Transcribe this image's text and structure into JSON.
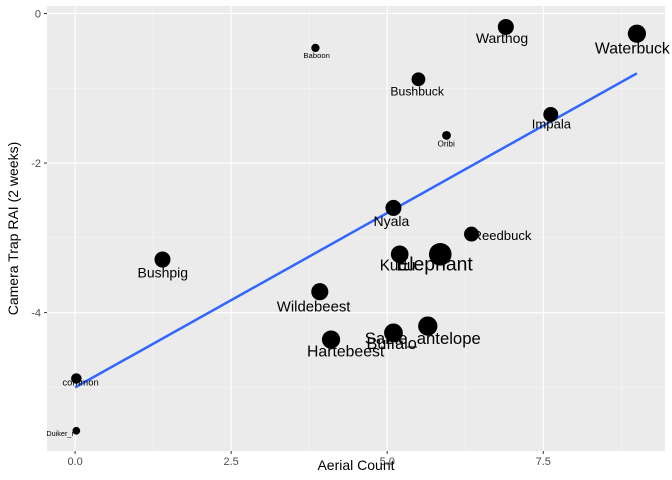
{
  "chart_data": {
    "type": "scatter",
    "xlabel": "Aerial Count",
    "ylabel": "Camera Trap RAI (2 weeks)",
    "xlim": [
      -0.45,
      9.45
    ],
    "ylim": [
      -5.85,
      0.1
    ],
    "x_ticks": [
      0,
      2.5,
      5,
      7.5
    ],
    "x_tick_labels": [
      "0.0",
      "2.5",
      "5.0",
      "7.5"
    ],
    "y_ticks": [
      0,
      -2,
      -4
    ],
    "y_tick_labels": [
      "0",
      "-2",
      "-4"
    ],
    "grid": true,
    "background": "#ebebeb",
    "point_color": "#000000",
    "fit_line": {
      "color": "#3366ff",
      "x": [
        0,
        9
      ],
      "y": [
        -5.0,
        -0.8
      ]
    },
    "points": [
      {
        "label": "Warthog",
        "x": 6.9,
        "y": -0.18,
        "size": 1.0
      },
      {
        "label": "Waterbuck",
        "x": 9.0,
        "y": -0.27,
        "size": 1.2
      },
      {
        "label": "Baboon",
        "x": 3.85,
        "y": -0.46,
        "size": 0.3
      },
      {
        "label": "Bushbuck",
        "x": 5.5,
        "y": -0.88,
        "size": 0.8
      },
      {
        "label": "Impala",
        "x": 7.62,
        "y": -1.35,
        "size": 0.9
      },
      {
        "label": "Oribi",
        "x": 5.95,
        "y": -1.63,
        "size": 0.35
      },
      {
        "label": "Nyala",
        "x": 5.1,
        "y": -2.6,
        "size": 1.0
      },
      {
        "label": "Reedbuck",
        "x": 6.35,
        "y": -2.95,
        "size": 0.9
      },
      {
        "label": "Bushpig",
        "x": 1.4,
        "y": -3.29,
        "size": 1.0
      },
      {
        "label": "Kudu",
        "x": 5.2,
        "y": -3.22,
        "size": 1.15
      },
      {
        "label": "Elephant",
        "x": 5.85,
        "y": -3.22,
        "size": 1.6
      },
      {
        "label": "Wildebeest",
        "x": 3.92,
        "y": -3.72,
        "size": 1.1
      },
      {
        "label": "Sable_antelope",
        "x": 5.65,
        "y": -4.18,
        "size": 1.3
      },
      {
        "label": "Buffalo",
        "x": 5.1,
        "y": -4.27,
        "size": 1.25
      },
      {
        "label": "Hartebeest",
        "x": 4.1,
        "y": -4.36,
        "size": 1.2
      },
      {
        "label": "common",
        "x": 0.02,
        "y": -4.88,
        "size": 0.5
      },
      {
        "label": "Duiker_r",
        "x": 0.02,
        "y": -5.58,
        "size": 0.25
      }
    ]
  }
}
